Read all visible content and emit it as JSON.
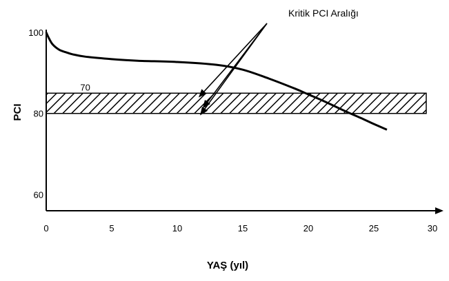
{
  "chart_data": {
    "type": "line",
    "title": "",
    "xlabel": "YAŞ (yıl)",
    "ylabel": "PCI",
    "x_ticks": [
      0,
      5,
      10,
      15,
      20,
      25,
      30
    ],
    "y_ticks": [
      {
        "value": 100,
        "label": "100"
      },
      {
        "value": 80,
        "label": "80"
      },
      {
        "value": 60,
        "label": "60"
      }
    ],
    "xlim": [
      0,
      30
    ],
    "ylim": [
      56,
      100
    ],
    "grid": false,
    "series": [
      {
        "x": [
          0,
          0.2,
          0.5,
          1,
          1.5,
          2,
          3,
          5,
          7,
          10,
          13,
          15,
          17,
          19,
          20,
          21,
          22,
          23,
          24,
          25,
          26
        ],
        "y": [
          100,
          98.6,
          97.0,
          95.7,
          95.1,
          94.6,
          94.0,
          93.4,
          93.0,
          92.7,
          92.0,
          90.8,
          88.6,
          86.1,
          84.7,
          83.3,
          81.8,
          80.3,
          78.9,
          77.4,
          76.0
        ]
      }
    ],
    "critical_band": {
      "y_low": 80,
      "y_high": 85,
      "x_start": 0,
      "x_end": 29,
      "pattern": "diagonal-hatch",
      "label": "70"
    },
    "annotation": {
      "text": "Kritik PCI Aralığı",
      "arrows_to": [
        {
          "x": 11.7,
          "y": 84.2
        },
        {
          "x": 12.0,
          "y": 81.5
        },
        {
          "x": 11.8,
          "y": 79.8
        }
      ]
    }
  },
  "colors": {
    "line": "#000000",
    "axis": "#000000",
    "hatch": "#000000",
    "arrow": "#000000"
  }
}
